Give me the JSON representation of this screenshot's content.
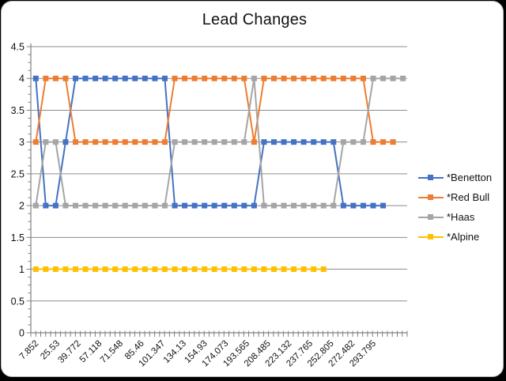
{
  "chart_data": {
    "type": "line",
    "title": "Lead Changes",
    "xlabel": "",
    "ylabel": "",
    "ylim": [
      0,
      4.5
    ],
    "y_tick_step": 0.5,
    "y_tick_labels": [
      "0",
      "0.5",
      "1",
      "1.5",
      "2",
      "2.5",
      "3",
      "3.5",
      "4",
      "4.5"
    ],
    "x_tick_labels": [
      "7.852",
      "25.53",
      "39.772",
      "57.118",
      "71.548",
      "85.46",
      "101.347",
      "134.13",
      "154.93",
      "174.073",
      "193.565",
      "208.485",
      "223.132",
      "237.765",
      "252.805",
      "272.482",
      "293.795"
    ],
    "x_slot_count": 38,
    "grid": "horizontal",
    "legend_position": "right",
    "gridline_color": "#8c8c8c",
    "axis_color": "#808080",
    "text_color": "#111111",
    "series": [
      {
        "name": "*Benetton",
        "color": "#4472C4",
        "values": [
          4,
          2,
          2,
          3,
          4,
          4,
          4,
          4,
          4,
          4,
          4,
          4,
          4,
          4,
          2,
          2,
          2,
          2,
          2,
          2,
          2,
          2,
          2,
          3,
          3,
          3,
          3,
          3,
          3,
          3,
          3,
          2,
          2,
          2,
          2,
          2
        ]
      },
      {
        "name": "*Red Bull",
        "color": "#ED7D31",
        "values": [
          3,
          4,
          4,
          4,
          3,
          3,
          3,
          3,
          3,
          3,
          3,
          3,
          3,
          3,
          4,
          4,
          4,
          4,
          4,
          4,
          4,
          4,
          3,
          4,
          4,
          4,
          4,
          4,
          4,
          4,
          4,
          4,
          4,
          4,
          3,
          3,
          3
        ]
      },
      {
        "name": "*Haas",
        "color": "#A5A5A5",
        "values": [
          2,
          3,
          3,
          2,
          2,
          2,
          2,
          2,
          2,
          2,
          2,
          2,
          2,
          2,
          3,
          3,
          3,
          3,
          3,
          3,
          3,
          3,
          4,
          2,
          2,
          2,
          2,
          2,
          2,
          2,
          2,
          3,
          3,
          3,
          4,
          4,
          4,
          4
        ]
      },
      {
        "name": "*Alpine",
        "color": "#FFC000",
        "values": [
          1,
          1,
          1,
          1,
          1,
          1,
          1,
          1,
          1,
          1,
          1,
          1,
          1,
          1,
          1,
          1,
          1,
          1,
          1,
          1,
          1,
          1,
          1,
          1,
          1,
          1,
          1,
          1,
          1,
          1
        ]
      }
    ]
  }
}
